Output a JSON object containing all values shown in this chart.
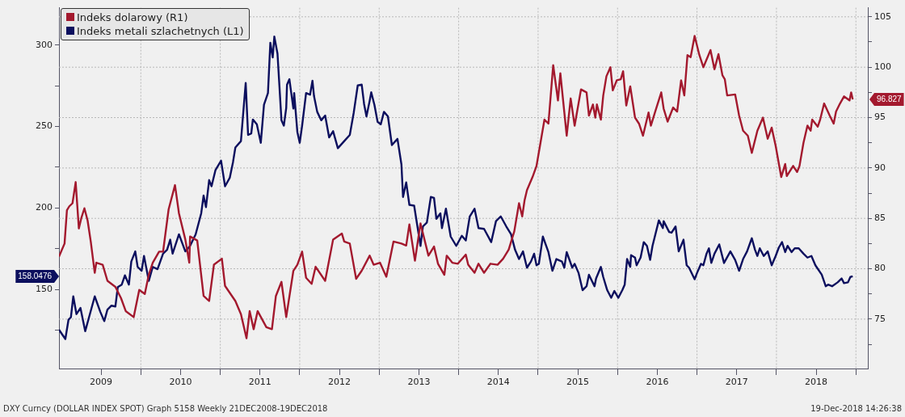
{
  "chart_data": {
    "type": "line",
    "series": [
      {
        "name": "Indeks dolarowy (R1)",
        "color": "#a3192e",
        "axis": "y2",
        "x": [
          2008.97,
          2009.04,
          2009.07,
          2009.1,
          2009.14,
          2009.18,
          2009.22,
          2009.25,
          2009.29,
          2009.33,
          2009.37,
          2009.42,
          2009.44,
          2009.52,
          2009.58,
          2009.68,
          2009.75,
          2009.81,
          2009.91,
          2009.98,
          2010.05,
          2010.1,
          2010.15,
          2010.23,
          2010.28,
          2010.35,
          2010.43,
          2010.48,
          2010.56,
          2010.61,
          2010.62,
          2010.71,
          2010.79,
          2010.86,
          2010.92,
          2011.02,
          2011.06,
          2011.19,
          2011.26,
          2011.33,
          2011.37,
          2011.42,
          2011.47,
          2011.58,
          2011.65,
          2011.7,
          2011.77,
          2011.83,
          2011.92,
          2011.97,
          2012.03,
          2012.08,
          2012.15,
          2012.2,
          2012.32,
          2012.42,
          2012.53,
          2012.56,
          2012.63,
          2012.71,
          2012.78,
          2012.88,
          2012.93,
          2013.01,
          2013.09,
          2013.18,
          2013.28,
          2013.34,
          2013.38,
          2013.45,
          2013.52,
          2013.62,
          2013.69,
          2013.74,
          2013.82,
          2013.85,
          2013.92,
          2013.99,
          2014.09,
          2014.12,
          2014.2,
          2014.25,
          2014.32,
          2014.4,
          2014.49,
          2014.56,
          2014.63,
          2014.7,
          2014.76,
          2014.8,
          2014.83,
          2014.86,
          2014.93,
          2014.98,
          2015.03,
          2015.08,
          2015.13,
          2015.19,
          2015.25,
          2015.28,
          2015.36,
          2015.41,
          2015.46,
          2015.54,
          2015.61,
          2015.64,
          2015.69,
          2015.72,
          2015.74,
          2015.79,
          2015.82,
          2015.86,
          2015.91,
          2015.94,
          2015.99,
          2016.04,
          2016.07,
          2016.11,
          2016.16,
          2016.22,
          2016.27,
          2016.32,
          2016.39,
          2016.42,
          2016.47,
          2016.55,
          2016.58,
          2016.63,
          2016.7,
          2016.75,
          2016.8,
          2016.84,
          2016.88,
          2016.92,
          2016.97,
          2017.03,
          2017.08,
          2017.17,
          2017.22,
          2017.27,
          2017.32,
          2017.35,
          2017.38,
          2017.48,
          2017.53,
          2017.58,
          2017.64,
          2017.69,
          2017.76,
          2017.83,
          2017.89,
          2017.94,
          2017.99,
          2018.06,
          2018.11,
          2018.13,
          2018.21,
          2018.26,
          2018.29,
          2018.34,
          2018.39,
          2018.43,
          2018.45,
          2018.52,
          2018.55,
          2018.6,
          2018.67,
          2018.72,
          2018.75,
          2018.8,
          2018.85,
          2018.92,
          2018.94,
          2018.96
        ],
        "values": [
          81.2,
          82.5,
          85.8,
          86.2,
          86.5,
          88.6,
          84.0,
          85.0,
          86.0,
          84.8,
          82.7,
          79.6,
          80.6,
          80.4,
          78.8,
          78.2,
          77.1,
          75.8,
          75.2,
          77.9,
          77.5,
          79.4,
          80.6,
          81.7,
          81.7,
          85.9,
          88.3,
          85.5,
          82.9,
          80.6,
          83.2,
          82.8,
          77.3,
          76.8,
          80.4,
          81.0,
          78.3,
          76.8,
          75.5,
          73.1,
          75.8,
          74.0,
          75.8,
          74.2,
          74.0,
          77.3,
          78.7,
          75.2,
          79.8,
          80.4,
          81.7,
          79.1,
          78.5,
          80.2,
          78.8,
          82.9,
          83.5,
          82.7,
          82.5,
          79.0,
          79.8,
          81.3,
          80.4,
          80.6,
          79.2,
          82.7,
          82.5,
          82.3,
          84.4,
          80.8,
          84.5,
          81.3,
          82.2,
          80.5,
          79.4,
          81.3,
          80.6,
          80.5,
          81.4,
          80.4,
          79.6,
          80.5,
          79.6,
          80.5,
          80.4,
          81.0,
          81.9,
          83.7,
          86.5,
          85.2,
          86.8,
          87.8,
          89.1,
          90.2,
          92.5,
          94.8,
          94.4,
          100.2,
          96.7,
          99.4,
          93.2,
          96.9,
          94.2,
          97.8,
          97.5,
          95.2,
          96.3,
          95.0,
          96.3,
          94.8,
          97.2,
          99.1,
          100.0,
          97.7,
          98.7,
          98.8,
          99.6,
          96.2,
          98.1,
          95.0,
          94.4,
          93.2,
          95.5,
          94.2,
          95.5,
          97.5,
          95.9,
          94.6,
          96.0,
          95.6,
          98.7,
          97.2,
          101.2,
          101.0,
          103.1,
          101.2,
          100.0,
          101.7,
          99.8,
          101.3,
          99.2,
          98.8,
          97.2,
          97.3,
          95.2,
          93.7,
          93.2,
          91.5,
          93.7,
          95.0,
          92.9,
          94.0,
          92.2,
          89.1,
          90.4,
          89.2,
          90.2,
          89.6,
          90.2,
          92.5,
          94.2,
          93.7,
          94.8,
          94.1,
          94.8,
          96.4,
          95.2,
          94.4,
          95.6,
          96.4,
          97.1,
          96.7,
          97.5,
          96.8
        ]
      },
      {
        "name": "Indeks metali szlachetnych (L1)",
        "color": "#0c0f5e",
        "axis": "y",
        "x": [
          2008.97,
          2009.05,
          2009.09,
          2009.12,
          2009.15,
          2009.19,
          2009.24,
          2009.3,
          2009.34,
          2009.42,
          2009.49,
          2009.54,
          2009.58,
          2009.63,
          2009.68,
          2009.71,
          2009.76,
          2009.8,
          2009.85,
          2009.88,
          2009.93,
          2009.96,
          2010.01,
          2010.04,
          2010.1,
          2010.15,
          2010.21,
          2010.28,
          2010.33,
          2010.37,
          2010.4,
          2010.48,
          2010.56,
          2010.62,
          2010.69,
          2010.76,
          2010.79,
          2010.82,
          2010.86,
          2010.89,
          2010.94,
          2011.01,
          2011.06,
          2011.12,
          2011.16,
          2011.19,
          2011.26,
          2011.32,
          2011.35,
          2011.39,
          2011.41,
          2011.46,
          2011.51,
          2011.55,
          2011.6,
          2011.63,
          2011.66,
          2011.68,
          2011.72,
          2011.77,
          2011.8,
          2011.83,
          2011.84,
          2011.87,
          2011.92,
          2011.93,
          2011.97,
          2012.0,
          2012.03,
          2012.08,
          2012.13,
          2012.16,
          2012.18,
          2012.22,
          2012.27,
          2012.32,
          2012.37,
          2012.42,
          2012.48,
          2012.56,
          2012.63,
          2012.68,
          2012.73,
          2012.78,
          2012.81,
          2012.84,
          2012.88,
          2012.9,
          2012.94,
          2012.98,
          2013.02,
          2013.06,
          2013.11,
          2013.16,
          2013.23,
          2013.28,
          2013.3,
          2013.34,
          2013.38,
          2013.44,
          2013.52,
          2013.55,
          2013.6,
          2013.65,
          2013.69,
          2013.72,
          2013.77,
          2013.79,
          2013.84,
          2013.9,
          2013.97,
          2014.04,
          2014.09,
          2014.14,
          2014.2,
          2014.25,
          2014.32,
          2014.41,
          2014.47,
          2014.53,
          2014.6,
          2014.66,
          2014.71,
          2014.76,
          2014.81,
          2014.86,
          2014.91,
          2014.95,
          2014.98,
          2015.01,
          2015.06,
          2015.13,
          2015.18,
          2015.23,
          2015.3,
          2015.33,
          2015.36,
          2015.43,
          2015.46,
          2015.51,
          2015.56,
          2015.61,
          2015.64,
          2015.71,
          2015.73,
          2015.79,
          2015.82,
          2015.87,
          2015.92,
          2015.96,
          2016.01,
          2016.06,
          2016.09,
          2016.12,
          2016.16,
          2016.17,
          2016.22,
          2016.24,
          2016.29,
          2016.33,
          2016.37,
          2016.41,
          2016.44,
          2016.52,
          2016.57,
          2016.58,
          2016.65,
          2016.68,
          2016.73,
          2016.77,
          2016.83,
          2016.87,
          2016.9,
          2016.97,
          2017.0,
          2017.05,
          2017.08,
          2017.12,
          2017.15,
          2017.18,
          2017.22,
          2017.28,
          2017.34,
          2017.42,
          2017.48,
          2017.53,
          2017.58,
          2017.63,
          2017.69,
          2017.73,
          2017.76,
          2017.79,
          2017.84,
          2017.89,
          2017.94,
          2017.99,
          2018.03,
          2018.07,
          2018.11,
          2018.14,
          2018.19,
          2018.23,
          2018.28,
          2018.34,
          2018.39,
          2018.44,
          2018.49,
          2018.57,
          2018.62,
          2018.65,
          2018.7,
          2018.77,
          2018.82,
          2018.85,
          2018.9,
          2018.93,
          2018.96
        ],
        "values": [
          125.2,
          119.5,
          131.4,
          132.9,
          145.7,
          134.8,
          138.6,
          124.3,
          131.4,
          145.7,
          136.2,
          130.5,
          137.6,
          140.0,
          139.5,
          151.4,
          152.9,
          158.6,
          152.9,
          167.1,
          173.3,
          163.8,
          161.4,
          170.5,
          155.2,
          163.8,
          162.4,
          171.9,
          174.3,
          180.5,
          171.9,
          183.8,
          173.3,
          176.7,
          183.8,
          196.7,
          207.6,
          200.5,
          217.1,
          213.3,
          223.3,
          229.0,
          213.3,
          218.6,
          228.1,
          237.1,
          241.0,
          276.7,
          244.8,
          245.7,
          254.3,
          251.4,
          240.0,
          263.3,
          270.5,
          301.4,
          292.4,
          305.2,
          294.8,
          253.8,
          250.5,
          261.4,
          275.7,
          279.0,
          261.0,
          270.5,
          246.7,
          240.0,
          250.5,
          270.5,
          269.5,
          278.1,
          268.6,
          259.0,
          253.8,
          256.7,
          243.3,
          247.1,
          236.7,
          241.0,
          244.8,
          258.6,
          275.2,
          275.7,
          263.8,
          256.2,
          265.7,
          271.0,
          263.3,
          252.9,
          251.4,
          259.0,
          256.2,
          238.6,
          242.4,
          226.7,
          206.7,
          215.7,
          201.9,
          201.4,
          176.7,
          188.6,
          191.0,
          206.7,
          206.2,
          193.3,
          196.7,
          187.6,
          199.5,
          182.4,
          176.7,
          182.9,
          180.0,
          194.8,
          199.5,
          187.6,
          187.1,
          179.0,
          191.9,
          194.8,
          188.6,
          183.8,
          174.3,
          168.6,
          173.3,
          163.3,
          167.1,
          171.9,
          164.8,
          165.7,
          182.4,
          172.9,
          161.4,
          168.6,
          167.1,
          163.3,
          172.9,
          163.3,
          165.7,
          160.0,
          149.5,
          151.9,
          159.0,
          151.9,
          156.7,
          163.8,
          157.6,
          149.5,
          144.8,
          149.0,
          144.8,
          149.5,
          152.9,
          168.6,
          163.8,
          171.0,
          169.5,
          164.8,
          169.5,
          179.0,
          176.7,
          168.1,
          176.7,
          192.4,
          187.6,
          191.9,
          185.2,
          184.8,
          188.6,
          173.3,
          180.5,
          164.8,
          163.3,
          156.2,
          160.0,
          165.7,
          164.8,
          171.9,
          175.2,
          166.2,
          171.9,
          177.6,
          166.2,
          173.3,
          168.1,
          161.4,
          168.6,
          173.3,
          181.4,
          174.3,
          170.5,
          175.2,
          170.5,
          173.3,
          164.8,
          170.5,
          175.7,
          179.0,
          172.9,
          176.7,
          172.9,
          175.2,
          175.2,
          171.9,
          169.5,
          170.5,
          164.8,
          159.0,
          151.9,
          152.9,
          151.9,
          154.3,
          156.7,
          153.8,
          154.3,
          157.6,
          158.0
        ]
      }
    ],
    "xlim": [
      2008.97,
      2019.15
    ],
    "xticks": [
      {
        "value": 2009.5,
        "label": "2009"
      },
      {
        "value": 2010,
        "label": null
      },
      {
        "value": 2010.5,
        "label": "2010"
      },
      {
        "value": 2011,
        "label": null
      },
      {
        "value": 2011.5,
        "label": "2011"
      },
      {
        "value": 2012,
        "label": null
      },
      {
        "value": 2012.5,
        "label": "2012"
      },
      {
        "value": 2013,
        "label": null
      },
      {
        "value": 2013.5,
        "label": "2013"
      },
      {
        "value": 2014,
        "label": null
      },
      {
        "value": 2014.5,
        "label": "2014"
      },
      {
        "value": 2015,
        "label": null
      },
      {
        "value": 2015.5,
        "label": "2015"
      },
      {
        "value": 2016,
        "label": null
      },
      {
        "value": 2016.5,
        "label": "2016"
      },
      {
        "value": 2017,
        "label": null
      },
      {
        "value": 2017.5,
        "label": "2017"
      },
      {
        "value": 2018,
        "label": null
      },
      {
        "value": 2018.5,
        "label": "2018"
      },
      {
        "value": 2019,
        "label": null
      }
    ],
    "ylim": [
      101.4,
      322.9
    ],
    "yticks": [
      {
        "value": 125,
        "label": null
      },
      150,
      {
        "value": 175,
        "label": null
      },
      200,
      {
        "value": 225,
        "label": null
      },
      250,
      {
        "value": 275,
        "label": null
      },
      300
    ],
    "y2lim": [
      70.1,
      105.9
    ],
    "y2ticks": [
      {
        "value": 72.5,
        "label": null
      },
      75,
      {
        "value": 77.5,
        "label": null
      },
      80,
      {
        "value": 82.5,
        "label": null
      },
      85,
      {
        "value": 87.5,
        "label": null
      },
      90,
      {
        "value": 92.5,
        "label": null
      },
      95,
      {
        "value": 97.5,
        "label": null
      },
      100,
      {
        "value": 102.5,
        "label": null
      },
      105
    ],
    "grid": true,
    "legend": "top left",
    "marker": "none",
    "line_style": "solid",
    "annotations": [
      "96.827",
      "158.0476",
      "DXY Curncy (DOLLAR INDEX SPOT) Graph 5158  Weekly 21DEC2008-19DEC2018",
      "19-Dec-2018 14:26:38"
    ]
  }
}
